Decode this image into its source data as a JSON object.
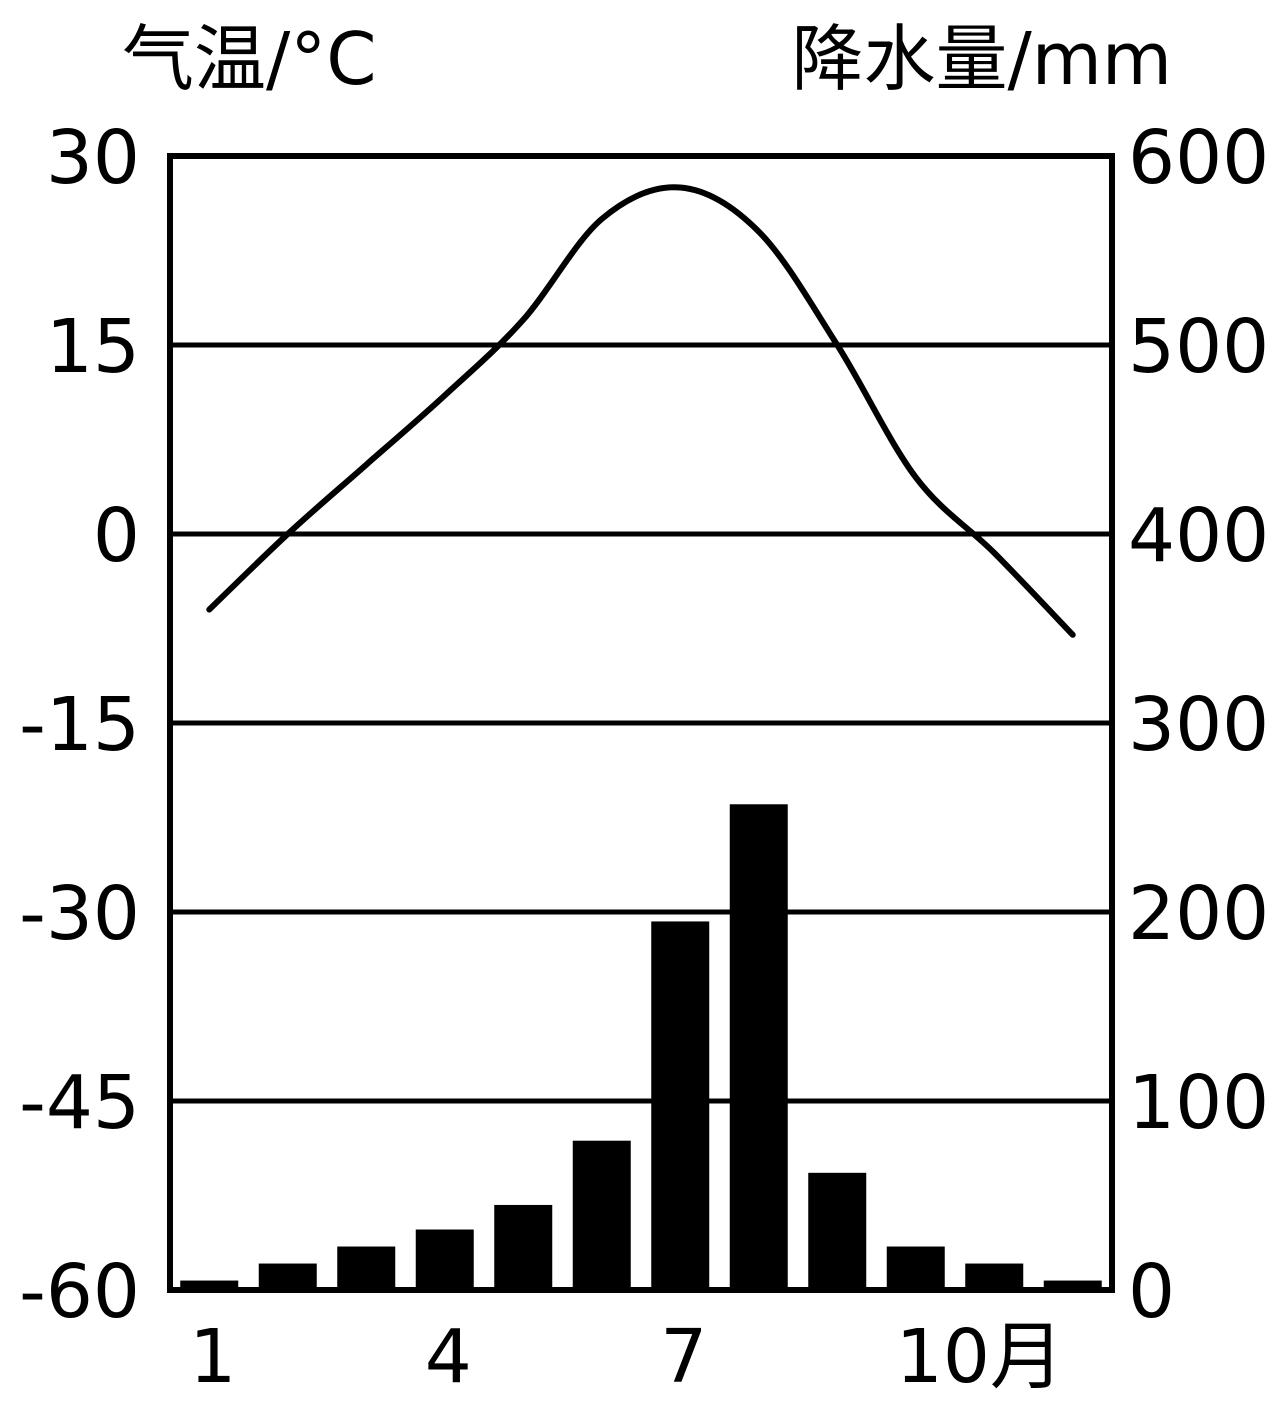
{
  "chart_data": {
    "type": "bar+line",
    "title": "",
    "x": [
      1,
      2,
      3,
      4,
      5,
      6,
      7,
      8,
      9,
      10,
      11,
      12
    ],
    "x_tick_labels": [
      "1",
      "4",
      "7",
      "10月"
    ],
    "x_tick_months": [
      1,
      4,
      7,
      10
    ],
    "left_axis": {
      "label": "气温/°C",
      "range": [
        -60,
        30
      ],
      "ticks": [
        30,
        15,
        0,
        -15,
        -30,
        -45,
        -60
      ]
    },
    "right_axis": {
      "label": "降水量/mm",
      "range": [
        0,
        600
      ],
      "ticks": [
        600,
        500,
        400,
        300,
        200,
        100,
        0
      ]
    },
    "grid": true,
    "series": [
      {
        "type": "bar",
        "axis": "right",
        "values": [
          5,
          14,
          23,
          32,
          45,
          79,
          195,
          257,
          62,
          23,
          14,
          5
        ]
      },
      {
        "type": "line",
        "axis": "left",
        "values": [
          -6,
          0,
          5.5,
          11,
          17,
          25,
          27.5,
          24,
          15,
          4.5,
          -1.5,
          -8
        ]
      }
    ]
  }
}
